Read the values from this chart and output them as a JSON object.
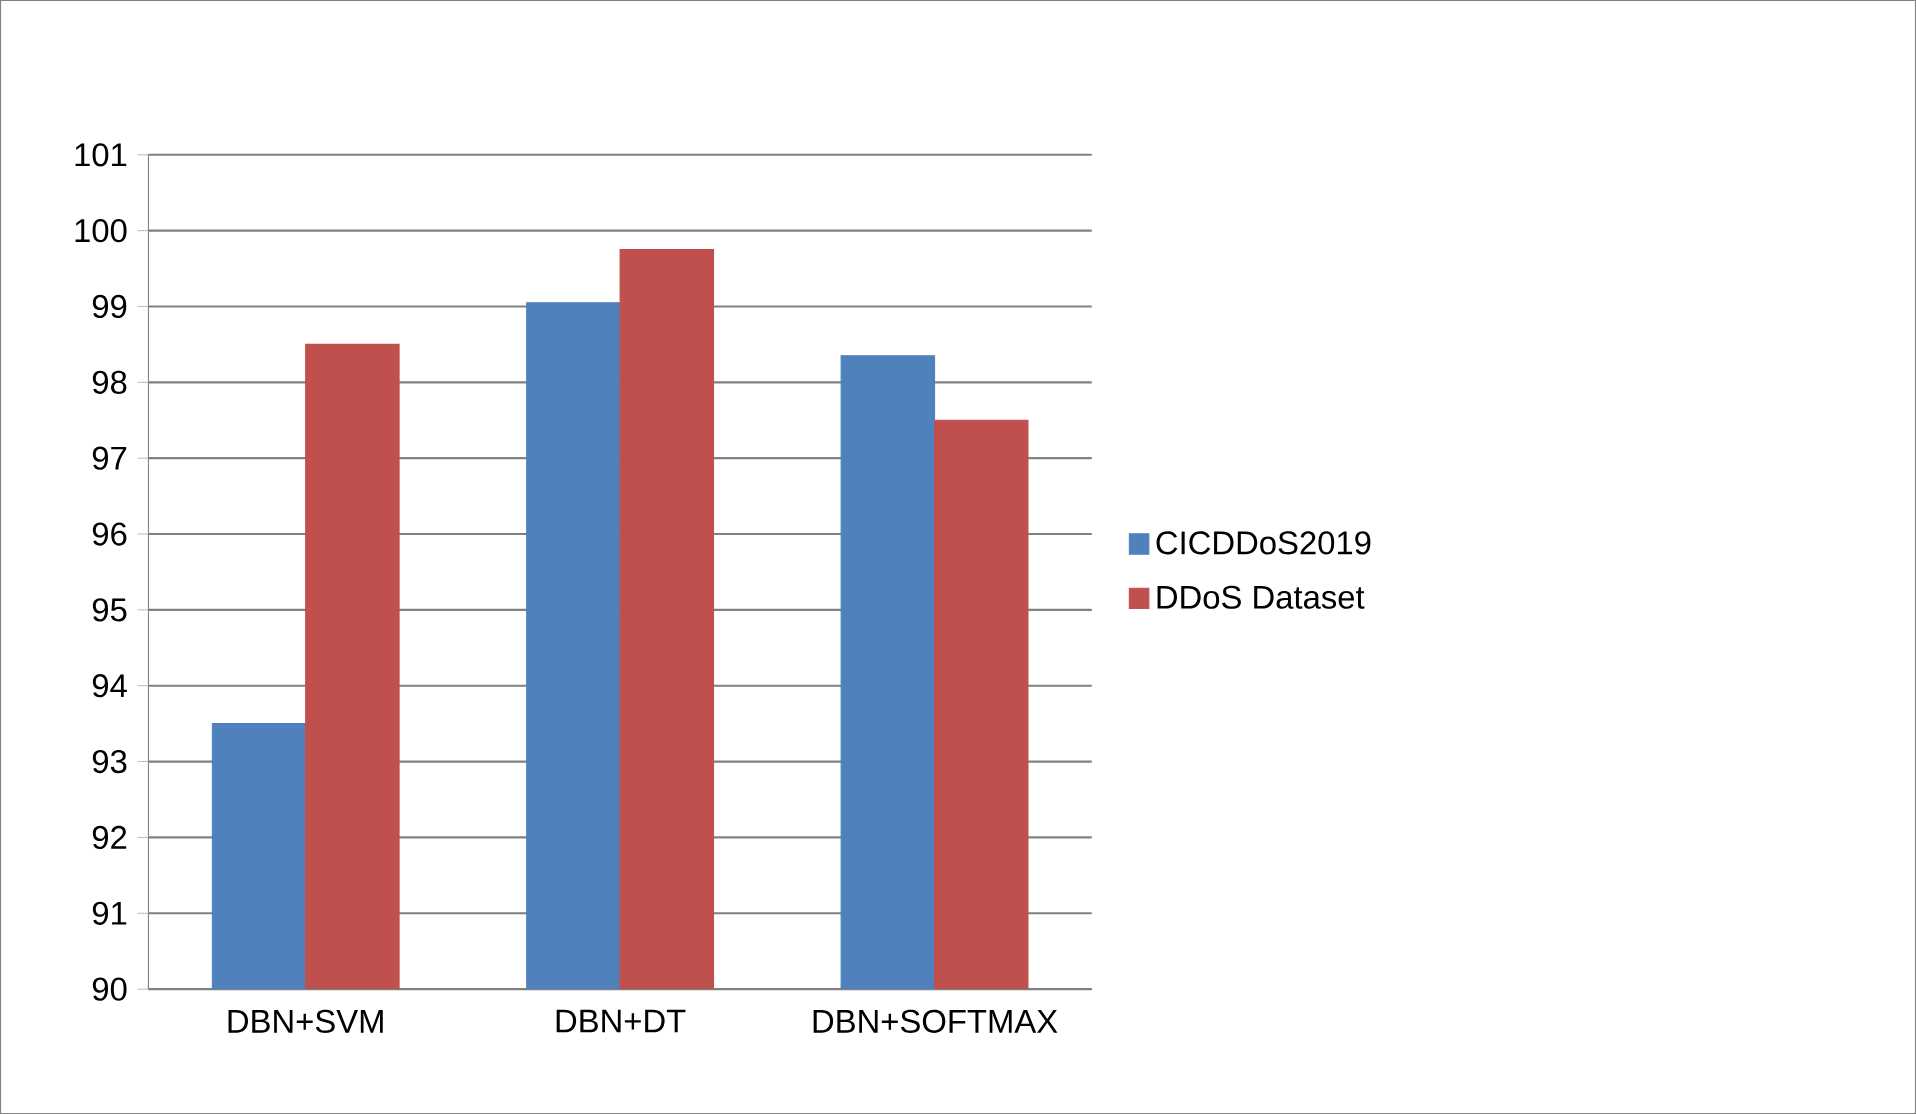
{
  "chart_data": {
    "type": "bar",
    "categories": [
      "DBN+SVM",
      "DBN+DT",
      "DBN+SOFTMAX"
    ],
    "series": [
      {
        "name": "CICDDoS2019",
        "color": "#4f81bd",
        "values": [
          93.5,
          99.05,
          98.35
        ]
      },
      {
        "name": "DDoS Dataset",
        "color": "#c0504d",
        "values": [
          98.5,
          99.75,
          97.5
        ]
      }
    ],
    "ylim": [
      90,
      101
    ],
    "yticks": [
      90,
      91,
      92,
      93,
      94,
      95,
      96,
      97,
      98,
      99,
      100,
      101
    ],
    "grid": "y",
    "legend": "right"
  }
}
